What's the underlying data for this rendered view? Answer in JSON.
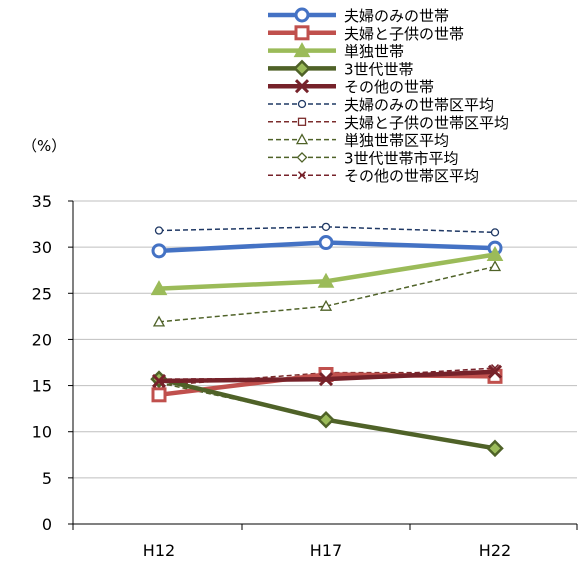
{
  "chart_data": {
    "type": "line",
    "categories": [
      "H12",
      "H17",
      "H22"
    ],
    "ylabel": "（%）",
    "ylim": [
      0,
      35
    ],
    "yticks": [
      0,
      5,
      10,
      15,
      20,
      25,
      30,
      35
    ],
    "grid": true,
    "legend_placement": "top-right",
    "series": [
      {
        "name": "夫婦のみの世帯",
        "values": [
          29.6,
          30.5,
          29.9
        ],
        "color": "#4472c4",
        "marker": "circle",
        "style": "solid"
      },
      {
        "name": "夫婦と子供の世帯",
        "values": [
          14.0,
          16.2,
          16.0
        ],
        "color": "#c0504d",
        "marker": "square",
        "style": "solid"
      },
      {
        "name": "単独世帯",
        "values": [
          25.5,
          26.3,
          29.2
        ],
        "color": "#9bbb59",
        "marker": "triangle",
        "style": "solid"
      },
      {
        "name": "3世代世帯",
        "values": [
          15.7,
          11.3,
          8.2
        ],
        "color": "#4f6228",
        "marker": "diamond",
        "style": "solid"
      },
      {
        "name": "その他の世帯",
        "values": [
          15.5,
          15.7,
          16.5
        ],
        "color": "#76222a",
        "marker": "x",
        "style": "solid"
      },
      {
        "name": "夫婦のみの世帯区平均",
        "values": [
          31.8,
          32.2,
          31.6
        ],
        "color": "#1f3864",
        "marker": "circle",
        "style": "dashed"
      },
      {
        "name": "夫婦と子供の世帯区平均",
        "values": [
          15.0,
          16.4,
          16.4
        ],
        "color": "#7b2c2c",
        "marker": "square",
        "style": "dashed"
      },
      {
        "name": "単独世帯区平均",
        "values": [
          21.9,
          23.6,
          27.9
        ],
        "color": "#4f6228",
        "marker": "triangle",
        "style": "dashed"
      },
      {
        "name": "3世代世帯市平均",
        "values": [
          15.3,
          11.4,
          8.3
        ],
        "color": "#4f6228",
        "marker": "diamond",
        "style": "dashed"
      },
      {
        "name": "その他の世帯区平均",
        "values": [
          15.7,
          15.8,
          16.9
        ],
        "color": "#76222a",
        "marker": "x",
        "style": "dashed"
      }
    ]
  }
}
